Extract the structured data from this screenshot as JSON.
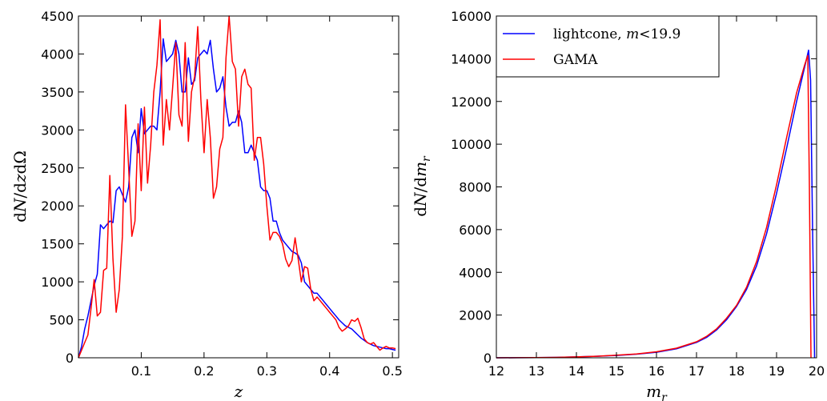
{
  "colors": {
    "lightcone": "#0000ff",
    "gama": "#ff0000"
  },
  "chart_data": [
    {
      "type": "line",
      "xlabel": "z",
      "ylabel": "dN/dzdΩ",
      "xlim": [
        0.0,
        0.51
      ],
      "ylim": [
        0,
        4500
      ],
      "xticks": [
        0.1,
        0.2,
        0.3,
        0.4,
        0.5
      ],
      "xtick_labels": [
        "0.1",
        "0.2",
        "0.3",
        "0.4",
        "0.5"
      ],
      "yticks": [
        0,
        500,
        1000,
        1500,
        2000,
        2500,
        3000,
        3500,
        4000,
        4500
      ],
      "ytick_labels": [
        "0",
        "500",
        "1000",
        "1500",
        "2000",
        "2500",
        "3000",
        "3500",
        "4000",
        "4500"
      ],
      "series": [
        {
          "name": "lightcone",
          "color": "#0000ff",
          "x": [
            0.0,
            0.005,
            0.01,
            0.015,
            0.02,
            0.025,
            0.03,
            0.035,
            0.04,
            0.045,
            0.05,
            0.055,
            0.06,
            0.065,
            0.07,
            0.075,
            0.08,
            0.085,
            0.09,
            0.095,
            0.1,
            0.105,
            0.11,
            0.115,
            0.12,
            0.125,
            0.13,
            0.135,
            0.14,
            0.145,
            0.15,
            0.155,
            0.16,
            0.165,
            0.17,
            0.175,
            0.18,
            0.185,
            0.19,
            0.195,
            0.2,
            0.205,
            0.21,
            0.215,
            0.22,
            0.225,
            0.23,
            0.235,
            0.24,
            0.245,
            0.25,
            0.255,
            0.26,
            0.265,
            0.27,
            0.275,
            0.28,
            0.285,
            0.29,
            0.295,
            0.3,
            0.305,
            0.31,
            0.315,
            0.32,
            0.325,
            0.33,
            0.335,
            0.34,
            0.345,
            0.35,
            0.355,
            0.36,
            0.365,
            0.37,
            0.375,
            0.38,
            0.385,
            0.39,
            0.395,
            0.4,
            0.405,
            0.41,
            0.415,
            0.42,
            0.425,
            0.43,
            0.435,
            0.44,
            0.445,
            0.45,
            0.455,
            0.46,
            0.465,
            0.47,
            0.475,
            0.48,
            0.485,
            0.49,
            0.495,
            0.5,
            0.505
          ],
          "values": [
            0,
            150,
            380,
            550,
            750,
            950,
            1100,
            1750,
            1700,
            1750,
            1800,
            1780,
            2200,
            2250,
            2150,
            2050,
            2250,
            2900,
            3000,
            2700,
            3280,
            2950,
            3000,
            3050,
            3050,
            3000,
            3500,
            4200,
            3900,
            3950,
            4000,
            4180,
            4000,
            3500,
            3500,
            3950,
            3600,
            3650,
            3950,
            4000,
            4050,
            4000,
            4180,
            3800,
            3500,
            3550,
            3700,
            3300,
            3050,
            3100,
            3100,
            3250,
            3100,
            2700,
            2700,
            2800,
            2700,
            2600,
            2250,
            2200,
            2200,
            2100,
            1800,
            1800,
            1650,
            1550,
            1500,
            1450,
            1400,
            1380,
            1350,
            1250,
            1000,
            950,
            900,
            850,
            850,
            800,
            750,
            700,
            650,
            600,
            550,
            500,
            460,
            420,
            400,
            380,
            340,
            300,
            260,
            230,
            200,
            180,
            160,
            150,
            140,
            130,
            120,
            120,
            110,
            100
          ]
        },
        {
          "name": "GAMA",
          "color": "#ff0000",
          "x": [
            0.0,
            0.005,
            0.01,
            0.015,
            0.02,
            0.025,
            0.03,
            0.035,
            0.04,
            0.045,
            0.05,
            0.055,
            0.06,
            0.065,
            0.07,
            0.075,
            0.08,
            0.085,
            0.09,
            0.095,
            0.1,
            0.105,
            0.11,
            0.115,
            0.12,
            0.125,
            0.13,
            0.135,
            0.14,
            0.145,
            0.15,
            0.155,
            0.16,
            0.165,
            0.17,
            0.175,
            0.18,
            0.185,
            0.19,
            0.195,
            0.2,
            0.205,
            0.21,
            0.215,
            0.22,
            0.225,
            0.23,
            0.235,
            0.24,
            0.245,
            0.25,
            0.255,
            0.26,
            0.265,
            0.27,
            0.275,
            0.28,
            0.285,
            0.29,
            0.295,
            0.3,
            0.305,
            0.31,
            0.315,
            0.32,
            0.325,
            0.33,
            0.335,
            0.34,
            0.345,
            0.35,
            0.355,
            0.36,
            0.365,
            0.37,
            0.375,
            0.38,
            0.385,
            0.39,
            0.395,
            0.4,
            0.405,
            0.41,
            0.415,
            0.42,
            0.425,
            0.43,
            0.435,
            0.44,
            0.445,
            0.45,
            0.455,
            0.46,
            0.465,
            0.47,
            0.475,
            0.48,
            0.485,
            0.49,
            0.495,
            0.5,
            0.505
          ],
          "values": [
            0,
            100,
            200,
            300,
            650,
            1030,
            550,
            600,
            1150,
            1180,
            2400,
            1300,
            600,
            900,
            1600,
            3330,
            2500,
            1600,
            1800,
            3080,
            2200,
            3300,
            2300,
            2800,
            3500,
            3850,
            4450,
            2800,
            3400,
            3000,
            3550,
            4150,
            3200,
            3050,
            4150,
            2850,
            3500,
            3700,
            4360,
            3400,
            2700,
            3400,
            2900,
            2100,
            2250,
            2750,
            2900,
            3950,
            4500,
            3900,
            3800,
            3050,
            3700,
            3800,
            3600,
            3550,
            2600,
            2900,
            2900,
            2550,
            2000,
            1550,
            1650,
            1650,
            1600,
            1500,
            1300,
            1200,
            1280,
            1580,
            1300,
            1000,
            1200,
            1180,
            900,
            750,
            800,
            750,
            700,
            650,
            600,
            550,
            500,
            400,
            350,
            380,
            420,
            500,
            480,
            520,
            400,
            250,
            200,
            180,
            200,
            150,
            100,
            130,
            150,
            130,
            130,
            120
          ]
        }
      ]
    },
    {
      "type": "line",
      "xlabel": "m_r",
      "ylabel": "dN/dm_r",
      "xlim": [
        12,
        20
      ],
      "ylim": [
        0,
        16000
      ],
      "xticks": [
        12,
        13,
        14,
        15,
        16,
        17,
        18,
        19,
        20
      ],
      "xtick_labels": [
        "12",
        "13",
        "14",
        "15",
        "16",
        "17",
        "18",
        "19",
        "20"
      ],
      "yticks": [
        0,
        2000,
        4000,
        6000,
        8000,
        10000,
        12000,
        14000,
        16000
      ],
      "ytick_labels": [
        "0",
        "2000",
        "4000",
        "6000",
        "8000",
        "10000",
        "12000",
        "14000",
        "16000"
      ],
      "legend": {
        "position": "upper-left",
        "entries": [
          {
            "series": "lightcone",
            "label_text": "lightcone, ",
            "label_math_m": "m",
            "label_math_rest": "<19.9"
          },
          {
            "series": "GAMA",
            "label_text": "GAMA"
          }
        ]
      },
      "series": [
        {
          "name": "lightcone, m<19.9",
          "color": "#0000ff",
          "x": [
            12.0,
            12.5,
            13.0,
            13.5,
            14.0,
            14.5,
            15.0,
            15.5,
            16.0,
            16.5,
            17.0,
            17.25,
            17.5,
            17.75,
            18.0,
            18.25,
            18.5,
            18.75,
            19.0,
            19.25,
            19.5,
            19.7,
            19.8,
            19.85,
            19.9,
            19.95
          ],
          "values": [
            0,
            5,
            10,
            20,
            40,
            70,
            110,
            170,
            260,
            420,
            720,
            950,
            1300,
            1780,
            2400,
            3200,
            4300,
            5800,
            7700,
            9800,
            12000,
            13600,
            14400,
            13000,
            6000,
            0
          ]
        },
        {
          "name": "GAMA",
          "color": "#ff0000",
          "x": [
            12.0,
            12.5,
            13.0,
            13.5,
            14.0,
            14.5,
            15.0,
            15.5,
            16.0,
            16.5,
            17.0,
            17.25,
            17.5,
            17.75,
            18.0,
            18.25,
            18.5,
            18.75,
            19.0,
            19.25,
            19.5,
            19.7,
            19.78,
            19.82,
            19.86
          ],
          "values": [
            0,
            5,
            10,
            20,
            40,
            70,
            120,
            180,
            280,
            450,
            750,
            1000,
            1350,
            1850,
            2450,
            3300,
            4500,
            6100,
            8100,
            10300,
            12400,
            13700,
            14150,
            8000,
            0
          ]
        }
      ]
    }
  ]
}
